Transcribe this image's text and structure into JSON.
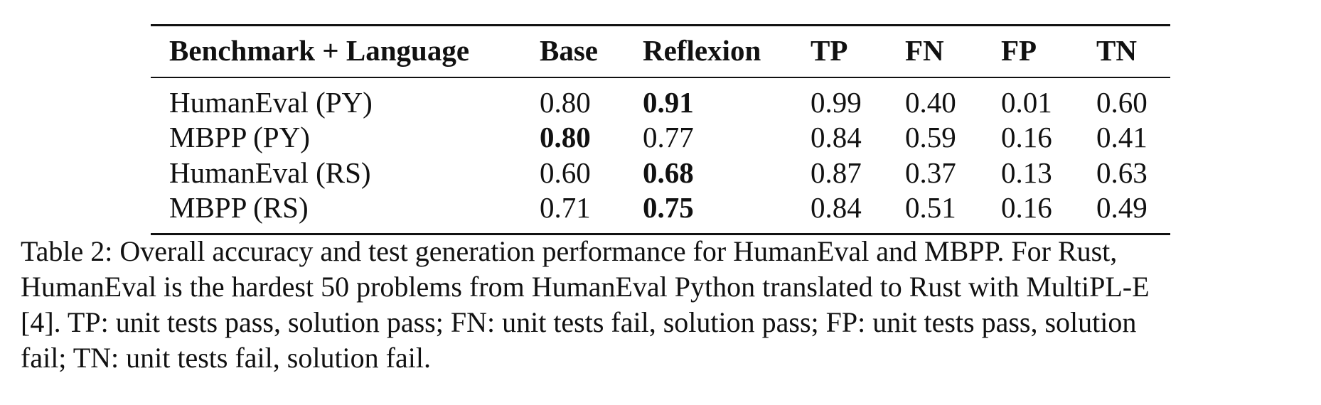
{
  "table": {
    "header": [
      "Benchmark + Language",
      "Base",
      "Reflexion",
      "TP",
      "FN",
      "FP",
      "TN"
    ],
    "rows": [
      [
        "HumanEval (PY)",
        "0.80",
        "0.91",
        "0.99",
        "0.40",
        "0.01",
        "0.60"
      ],
      [
        "MBPP (PY)",
        "0.80",
        "0.77",
        "0.84",
        "0.59",
        "0.16",
        "0.41"
      ],
      [
        "HumanEval (RS)",
        "0.60",
        "0.68",
        "0.87",
        "0.37",
        "0.13",
        "0.63"
      ],
      [
        "MBPP (RS)",
        "0.71",
        "0.75",
        "0.84",
        "0.51",
        "0.16",
        "0.49"
      ]
    ]
  },
  "caption": {
    "lines": [
      "Table 2: Overall accuracy and test generation performance for HumanEval and MBPP. For Rust,",
      "HumanEval is the hardest 50 problems from HumanEval Python translated to Rust with MultiPL-E",
      "[4]. TP: unit tests pass, solution pass; FN: unit tests fail, solution pass; FP: unit tests pass, solution",
      "fail; TN: unit tests fail, solution fail."
    ]
  }
}
